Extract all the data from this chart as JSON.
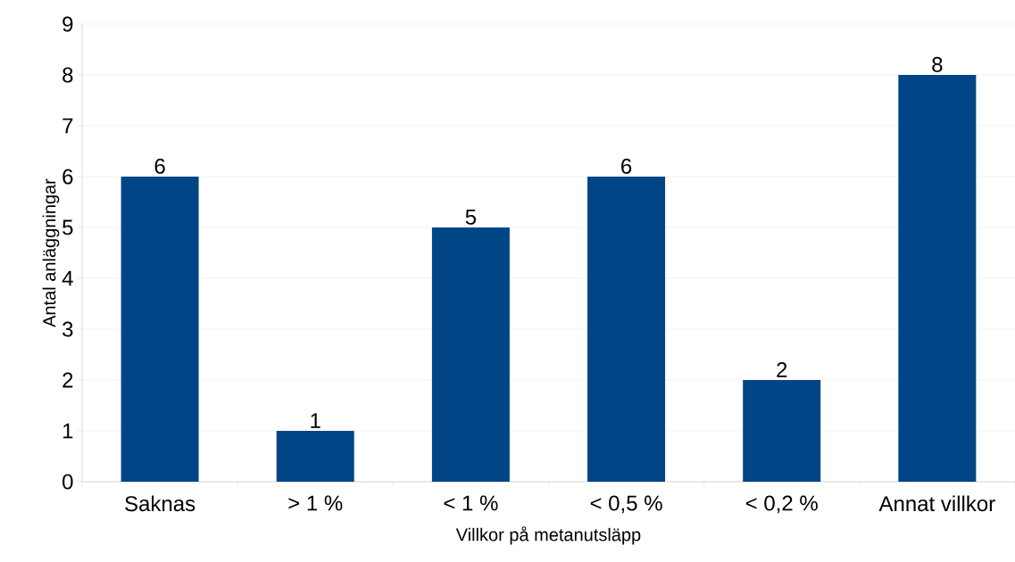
{
  "chart_data": {
    "type": "bar",
    "xlabel": "Villkor på metanutsläpp",
    "ylabel": "Antal anläggningar",
    "categories": [
      "Saknas",
      "> 1 %",
      "< 1 %",
      "< 0,5 %",
      "< 0,2 %",
      "Annat villkor"
    ],
    "values": [
      6,
      1,
      5,
      6,
      2,
      8
    ],
    "color": "#004586",
    "ylim": [
      0,
      9
    ],
    "yticks": [
      0,
      1,
      2,
      3,
      4,
      5,
      6,
      7,
      8,
      9
    ],
    "grid": "y",
    "data_labels": true
  }
}
